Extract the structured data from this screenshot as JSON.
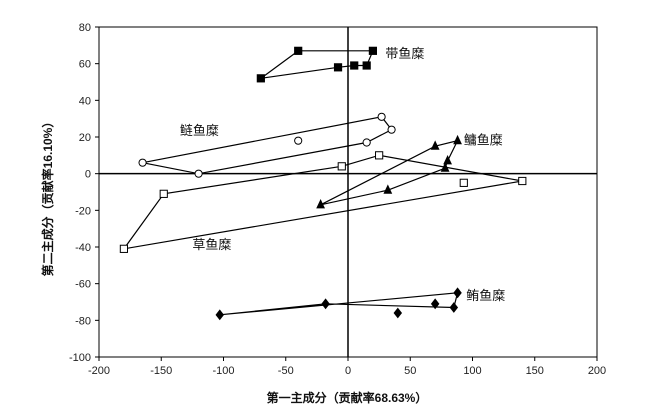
{
  "chart_data": {
    "type": "scatter",
    "title": "",
    "xlabel": "第一主成分（贡献率68.63%）",
    "ylabel": "第二主成分（贡献率16.10%）",
    "xlim": [
      -200,
      200
    ],
    "ylim": [
      -100,
      80
    ],
    "xticks": [
      -200,
      -150,
      -100,
      -50,
      0,
      50,
      100,
      150,
      200
    ],
    "yticks": [
      -100,
      -80,
      -60,
      -40,
      -20,
      0,
      20,
      40,
      60,
      80
    ],
    "reference_lines": {
      "x": 0,
      "y": 0
    },
    "grid": false,
    "legend": "none",
    "series": [
      {
        "name": "带鱼糜",
        "marker": "square-filled",
        "points": [
          [
            -70,
            52
          ],
          [
            -40,
            67
          ],
          [
            20,
            67
          ],
          [
            -8,
            58
          ],
          [
            5,
            59
          ],
          [
            15,
            59
          ]
        ],
        "path_order": [
          0,
          1,
          2,
          5,
          4,
          3,
          0
        ]
      },
      {
        "name": "鲢鱼糜",
        "marker": "circle-open",
        "points": [
          [
            -165,
            6
          ],
          [
            -120,
            0
          ],
          [
            -40,
            18
          ],
          [
            15,
            17
          ],
          [
            27,
            31
          ],
          [
            35,
            24
          ]
        ],
        "path_order": [
          0,
          4,
          5,
          3,
          1,
          0
        ]
      },
      {
        "name": "鳙鱼糜",
        "marker": "triangle-filled",
        "points": [
          [
            -22,
            -17
          ],
          [
            70,
            15
          ],
          [
            88,
            18
          ],
          [
            80,
            7
          ],
          [
            78,
            3
          ],
          [
            32,
            -9
          ]
        ],
        "path_order": [
          0,
          1,
          2,
          3,
          4,
          5,
          0
        ]
      },
      {
        "name": "草鱼糜",
        "marker": "square-open",
        "points": [
          [
            -180,
            -41
          ],
          [
            -148,
            -11
          ],
          [
            -5,
            4
          ],
          [
            25,
            10
          ],
          [
            93,
            -5
          ],
          [
            140,
            -4
          ]
        ],
        "path_order": [
          0,
          1,
          2,
          3,
          5,
          0
        ]
      },
      {
        "name": "鲔鱼糜",
        "marker": "diamond-filled",
        "points": [
          [
            -103,
            -77
          ],
          [
            -18,
            -71
          ],
          [
            40,
            -76
          ],
          [
            70,
            -71
          ],
          [
            85,
            -73
          ],
          [
            88,
            -65
          ]
        ],
        "path_order": [
          0,
          5,
          4,
          1,
          0
        ]
      }
    ],
    "annotations": [
      {
        "text": "带鱼糜",
        "x": 30,
        "y": 63
      },
      {
        "text": "鲢鱼糜",
        "x": -135,
        "y": 21
      },
      {
        "text": "鳙鱼糜",
        "x": 93,
        "y": 16
      },
      {
        "text": "草鱼糜",
        "x": -125,
        "y": -41
      },
      {
        "text": "鲔鱼糜",
        "x": 95,
        "y": -69
      }
    ]
  }
}
